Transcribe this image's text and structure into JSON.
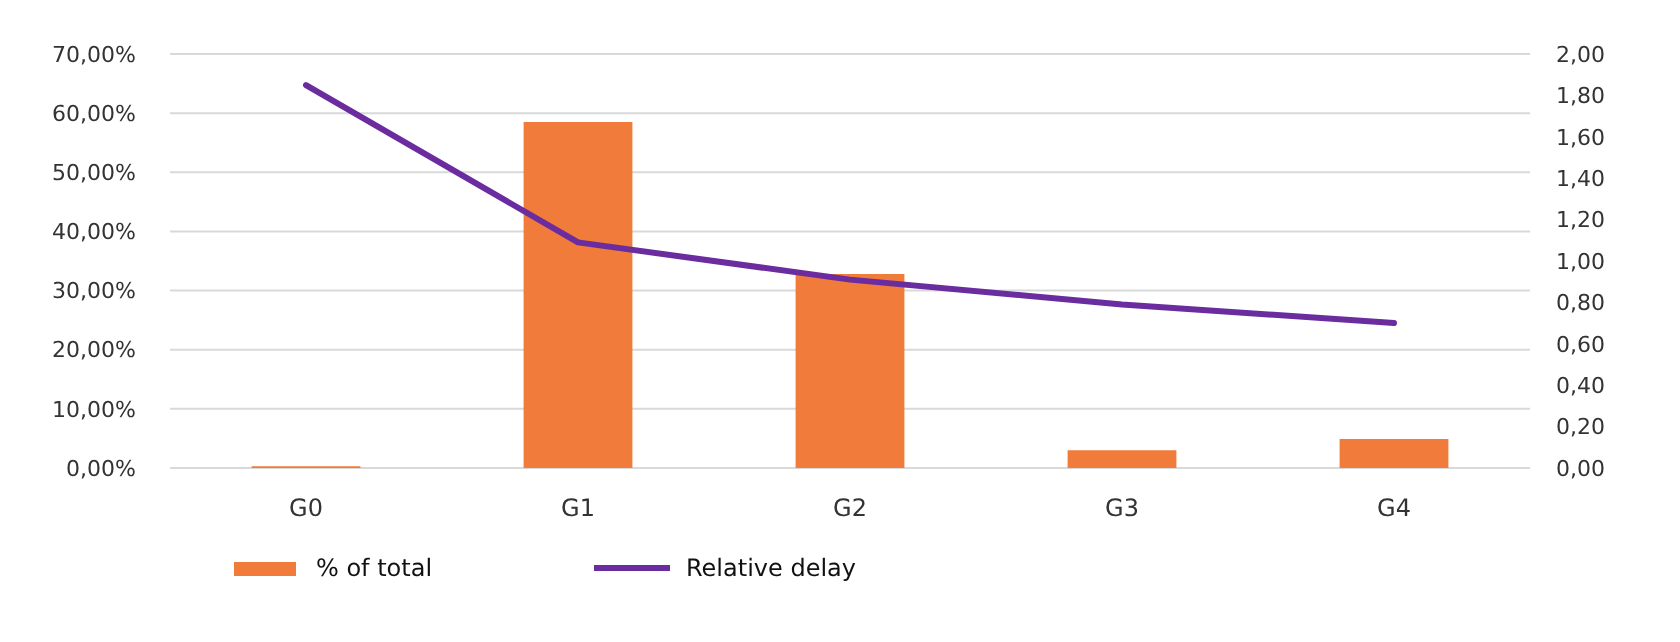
{
  "chart_data": {
    "type": "bar",
    "categories": [
      "G0",
      "G1",
      "G2",
      "G3",
      "G4"
    ],
    "series": [
      {
        "name": "% of total",
        "color": "#f07b3a",
        "values": [
          0.3,
          58.5,
          32.8,
          3.0,
          4.9
        ]
      },
      {
        "name": "Relative delay",
        "type": "line",
        "axis": "y2",
        "color": "#6a2c9e",
        "values": [
          1.85,
          1.09,
          0.91,
          0.79,
          0.7
        ]
      }
    ],
    "ylim": [
      0,
      70
    ],
    "yticks": [
      {
        "value": 0,
        "label": "0,00%"
      },
      {
        "value": 10,
        "label": "10,00%"
      },
      {
        "value": 20,
        "label": "20,00%"
      },
      {
        "value": 30,
        "label": "30,00%"
      },
      {
        "value": 40,
        "label": "40,00%"
      },
      {
        "value": 50,
        "label": "50,00%"
      },
      {
        "value": 60,
        "label": "60,00%"
      },
      {
        "value": 70,
        "label": "70,00%"
      }
    ],
    "y2lim": [
      0,
      2
    ],
    "y2ticks": [
      {
        "value": 0,
        "label": "0,00"
      },
      {
        "value": 0.2,
        "label": "0,20"
      },
      {
        "value": 0.4,
        "label": "0,40"
      },
      {
        "value": 0.6,
        "label": "0,60"
      },
      {
        "value": 0.8,
        "label": "0,80"
      },
      {
        "value": 1,
        "label": "1,00"
      },
      {
        "value": 1.2,
        "label": "1,20"
      },
      {
        "value": 1.4,
        "label": "1,40"
      },
      {
        "value": 1.6,
        "label": "1,60"
      },
      {
        "value": 1.8,
        "label": "1,80"
      },
      {
        "value": 2,
        "label": "2,00"
      }
    ],
    "grid": "y",
    "legend": "bottom left"
  }
}
